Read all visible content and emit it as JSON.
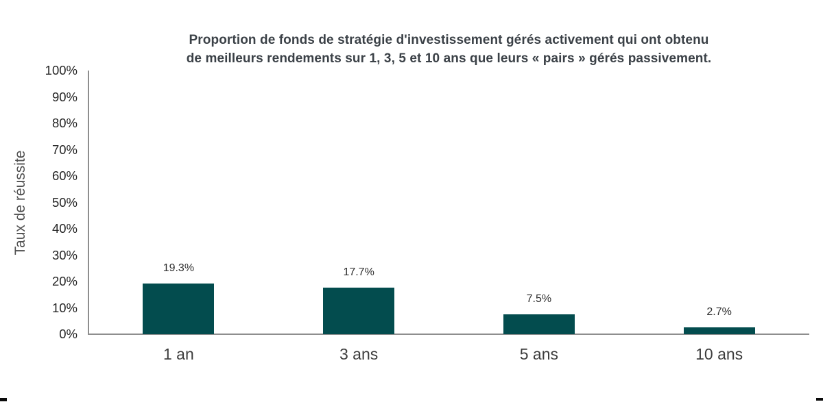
{
  "display": {
    "title_line1": "Proportion de fonds de stratégie d'investissement gérés activement qui ont obtenu",
    "title_line2": "de meilleurs rendements sur 1, 3, 5 et 10 ans que leurs « pairs » gérés passivement."
  },
  "chart_data": {
    "type": "bar",
    "title": "Proportion de fonds de stratégie d'investissement gérés activement qui ont obtenu de meilleurs rendements sur 1, 3, 5 et 10 ans que leurs « pairs » gérés passivement.",
    "categories": [
      "1 an",
      "3 ans",
      "5 ans",
      "10 ans"
    ],
    "values": [
      19.3,
      17.7,
      7.5,
      2.7
    ],
    "value_labels": [
      "19.3%",
      "17.7%",
      "7.5%",
      "2.7%"
    ],
    "xlabel": "",
    "ylabel": "Taux de réussite",
    "ylim": [
      0,
      100
    ],
    "ytick_step": 10,
    "ytick_labels": [
      "0%",
      "10%",
      "20%",
      "30%",
      "40%",
      "50%",
      "60%",
      "70%",
      "80%",
      "90%",
      "100%"
    ],
    "grid": false,
    "legend": "none",
    "bar_color": "#034c4e",
    "axis_color": "#8e8e8e",
    "title_color": "#3b4147"
  }
}
